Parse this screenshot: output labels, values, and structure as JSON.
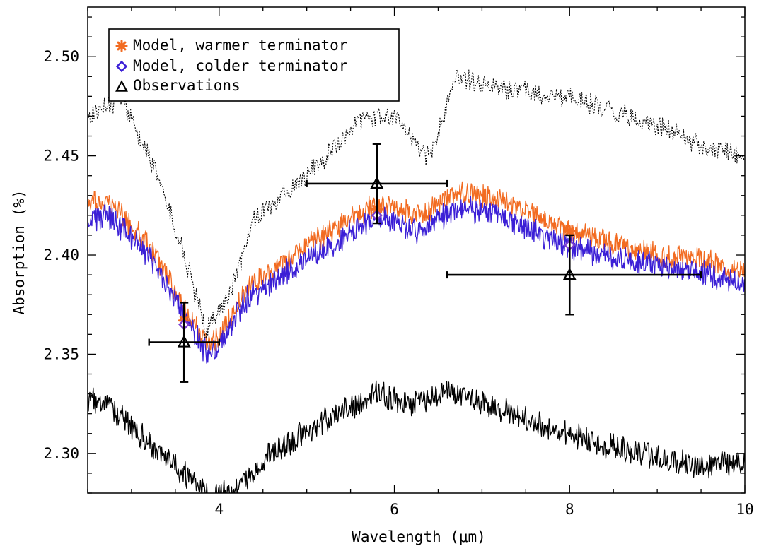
{
  "chart_data": {
    "type": "line",
    "title": "",
    "xlabel": "Wavelength (μm)",
    "ylabel": "Absorption (%)",
    "xlim": [
      2.5,
      10.0
    ],
    "ylim": [
      2.28,
      2.525
    ],
    "x_ticks": [
      {
        "value": 4,
        "label": "4"
      },
      {
        "value": 6,
        "label": "6"
      },
      {
        "value": 8,
        "label": "8"
      },
      {
        "value": 10,
        "label": "10"
      }
    ],
    "y_ticks": [
      {
        "value": 2.3,
        "label": "2.30"
      },
      {
        "value": 2.35,
        "label": "2.35"
      },
      {
        "value": 2.4,
        "label": "2.40"
      },
      {
        "value": 2.45,
        "label": "2.45"
      },
      {
        "value": 2.5,
        "label": "2.50"
      }
    ],
    "x_minor_step": 0.5,
    "y_minor_step": 0.01,
    "grid": false,
    "legend_position": "top-left",
    "legend": [
      {
        "label": "Model, warmer terminator",
        "marker": "asterisk",
        "color": "#f26b21"
      },
      {
        "label": "Model, colder terminator",
        "marker": "diamond",
        "color": "#3b1fd6"
      },
      {
        "label": "Observations",
        "marker": "triangle",
        "color": "#000000"
      }
    ],
    "spectra": [
      {
        "style": "solid",
        "color": "#f26b21",
        "noise": 0.01,
        "steps": 1100,
        "seed": 7,
        "x": [
          2.5,
          2.8,
          3.2,
          3.6,
          3.85,
          4.0,
          4.3,
          5.0,
          5.8,
          6.3,
          6.7,
          7.2,
          8.0,
          8.5,
          9.0,
          9.5,
          10.0
        ],
        "y": [
          2.428,
          2.425,
          2.405,
          2.374,
          2.356,
          2.358,
          2.382,
          2.405,
          2.426,
          2.42,
          2.432,
          2.428,
          2.412,
          2.406,
          2.4,
          2.398,
          2.39
        ]
      },
      {
        "style": "solid",
        "color": "#3b1fd6",
        "noise": 0.011,
        "steps": 1100,
        "seed": 13,
        "x": [
          2.5,
          2.8,
          3.2,
          3.6,
          3.85,
          4.0,
          4.3,
          5.0,
          5.8,
          6.3,
          6.7,
          7.2,
          8.0,
          8.5,
          9.0,
          9.5,
          10.0
        ],
        "y": [
          2.42,
          2.418,
          2.4,
          2.369,
          2.351,
          2.354,
          2.377,
          2.398,
          2.419,
          2.412,
          2.424,
          2.42,
          2.404,
          2.399,
          2.394,
          2.392,
          2.385
        ]
      },
      {
        "style": "dotted",
        "color": "#000000",
        "noise": 0.009,
        "steps": 750,
        "seed": 29,
        "x": [
          2.5,
          2.9,
          3.3,
          3.6,
          3.85,
          4.1,
          4.4,
          5.0,
          5.6,
          6.0,
          6.4,
          6.7,
          7.2,
          8.0,
          8.5,
          9.0,
          9.5,
          10.0
        ],
        "y": [
          2.47,
          2.478,
          2.44,
          2.4,
          2.362,
          2.378,
          2.418,
          2.44,
          2.468,
          2.47,
          2.448,
          2.49,
          2.484,
          2.48,
          2.472,
          2.465,
          2.455,
          2.45
        ]
      },
      {
        "style": "solid",
        "color": "#000000",
        "noise": 0.011,
        "steps": 950,
        "seed": 41,
        "x": [
          2.5,
          2.8,
          3.2,
          3.6,
          3.9,
          4.2,
          4.6,
          5.2,
          5.8,
          6.2,
          6.6,
          7.2,
          8.0,
          8.6,
          9.2,
          9.6,
          10.0
        ],
        "y": [
          2.327,
          2.322,
          2.305,
          2.29,
          2.278,
          2.282,
          2.3,
          2.316,
          2.33,
          2.325,
          2.332,
          2.322,
          2.31,
          2.302,
          2.296,
          2.294,
          2.295
        ]
      }
    ],
    "model_warmer_points": [
      {
        "x": 3.6,
        "y": 2.367
      },
      {
        "x": 5.8,
        "y": 2.423
      },
      {
        "x": 8.0,
        "y": 2.412
      }
    ],
    "model_colder_points": [
      {
        "x": 3.6,
        "y": 2.365
      },
      {
        "x": 5.8,
        "y": 2.42
      },
      {
        "x": 8.0,
        "y": 2.405
      }
    ],
    "observations": [
      {
        "x": 3.6,
        "y": 2.356,
        "xerr_low": 3.2,
        "xerr_high": 4.0,
        "yerr": 0.02
      },
      {
        "x": 5.8,
        "y": 2.436,
        "xerr_low": 5.0,
        "xerr_high": 6.6,
        "yerr": 0.02
      },
      {
        "x": 8.0,
        "y": 2.39,
        "xerr_low": 6.6,
        "xerr_high": 9.5,
        "yerr": 0.02
      }
    ]
  }
}
